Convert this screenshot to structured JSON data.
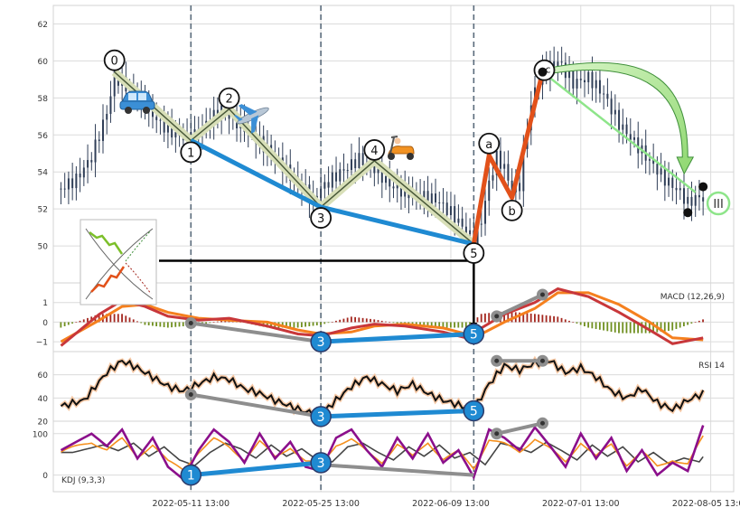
{
  "chart_data": {
    "type": "line",
    "title": "",
    "x_tick_labels": [
      "2022-05-11 13:00",
      "2022-05-25 13:00",
      "2022-06-09 13:00",
      "2022-07-01 13:00",
      "2022-08-05 13:00"
    ],
    "panels": [
      {
        "id": "price",
        "chart_type": "candlestick",
        "ylim": [
          48,
          63
        ],
        "yticks": [
          50,
          52,
          54,
          56,
          58,
          60,
          62
        ],
        "close_series": [
          {
            "x": 0,
            "y": 53.1
          },
          {
            "x": 2,
            "y": 53.6
          },
          {
            "x": 4,
            "y": 54.8
          },
          {
            "x": 6,
            "y": 57.2
          },
          {
            "x": 7,
            "y": 59.2
          },
          {
            "x": 9,
            "y": 58.4
          },
          {
            "x": 11,
            "y": 57.6
          },
          {
            "x": 13,
            "y": 56.6
          },
          {
            "x": 15,
            "y": 56.0
          },
          {
            "x": 17,
            "y": 55.8
          },
          {
            "x": 19,
            "y": 56.6
          },
          {
            "x": 21,
            "y": 57.4
          },
          {
            "x": 22,
            "y": 57.0
          },
          {
            "x": 24,
            "y": 56.4
          },
          {
            "x": 26,
            "y": 55.6
          },
          {
            "x": 28,
            "y": 54.8
          },
          {
            "x": 30,
            "y": 53.8
          },
          {
            "x": 32,
            "y": 53.0
          },
          {
            "x": 33,
            "y": 52.4
          },
          {
            "x": 34,
            "y": 53.1
          },
          {
            "x": 36,
            "y": 53.8
          },
          {
            "x": 38,
            "y": 54.4
          },
          {
            "x": 39,
            "y": 54.7
          },
          {
            "x": 41,
            "y": 54.2
          },
          {
            "x": 43,
            "y": 53.3
          },
          {
            "x": 45,
            "y": 52.9
          },
          {
            "x": 47,
            "y": 52.7
          },
          {
            "x": 49,
            "y": 52.5
          },
          {
            "x": 51,
            "y": 51.8
          },
          {
            "x": 53,
            "y": 50.8
          },
          {
            "x": 54,
            "y": 50.3
          },
          {
            "x": 55,
            "y": 51.4
          },
          {
            "x": 56,
            "y": 53.4
          },
          {
            "x": 57,
            "y": 54.8
          },
          {
            "x": 58,
            "y": 54.2
          },
          {
            "x": 59,
            "y": 53.0
          },
          {
            "x": 60,
            "y": 53.3
          },
          {
            "x": 61,
            "y": 56.5
          },
          {
            "x": 62,
            "y": 58.5
          },
          {
            "x": 63,
            "y": 59.4
          },
          {
            "x": 65,
            "y": 60.0
          },
          {
            "x": 67,
            "y": 58.8
          },
          {
            "x": 69,
            "y": 59.1
          },
          {
            "x": 71,
            "y": 58.2
          },
          {
            "x": 73,
            "y": 56.6
          },
          {
            "x": 75,
            "y": 55.6
          },
          {
            "x": 77,
            "y": 54.6
          },
          {
            "x": 79,
            "y": 53.6
          },
          {
            "x": 81,
            "y": 52.9
          },
          {
            "x": 82,
            "y": 52.3
          },
          {
            "x": 83,
            "y": 52.6
          }
        ],
        "wave_labels": [
          "0",
          "1",
          "2",
          "3",
          "4",
          "5",
          "a",
          "b",
          "c",
          "III"
        ],
        "wave_points": [
          {
            "label": "0",
            "x": 7,
            "y": 59.4
          },
          {
            "label": "1",
            "x": 17,
            "y": 55.7
          },
          {
            "label": "2",
            "x": 22,
            "y": 57.4
          },
          {
            "label": "3",
            "x": 34,
            "y": 52.1
          },
          {
            "label": "4",
            "x": 41,
            "y": 54.6
          },
          {
            "label": "5",
            "x": 54,
            "y": 50.1
          },
          {
            "label": "a",
            "x": 56,
            "y": 54.9
          },
          {
            "label": "b",
            "x": 59,
            "y": 52.6
          },
          {
            "label": "c",
            "x": 63,
            "y": 59.4
          }
        ],
        "icons": [
          "car-icon",
          "airplane-icon",
          "scooter-icon",
          "wave-diagram-icon"
        ]
      },
      {
        "id": "macd",
        "label": "MACD (12,26,9)",
        "ylim": [
          -1.5,
          2.0
        ],
        "yticks": [
          -1,
          0,
          1
        ],
        "macd": [
          {
            "x": 0,
            "y": -1.2
          },
          {
            "x": 5,
            "y": 0.4
          },
          {
            "x": 8,
            "y": 1.1
          },
          {
            "x": 11,
            "y": 0.8
          },
          {
            "x": 14,
            "y": 0.3
          },
          {
            "x": 18,
            "y": 0.1
          },
          {
            "x": 22,
            "y": 0.2
          },
          {
            "x": 27,
            "y": -0.2
          },
          {
            "x": 31,
            "y": -0.6
          },
          {
            "x": 34,
            "y": -0.7
          },
          {
            "x": 38,
            "y": -0.3
          },
          {
            "x": 41,
            "y": -0.1
          },
          {
            "x": 45,
            "y": -0.2
          },
          {
            "x": 50,
            "y": -0.5
          },
          {
            "x": 53,
            "y": -0.8
          },
          {
            "x": 55,
            "y": -0.3
          },
          {
            "x": 58,
            "y": 0.4
          },
          {
            "x": 62,
            "y": 1.0
          },
          {
            "x": 65,
            "y": 1.7
          },
          {
            "x": 69,
            "y": 1.3
          },
          {
            "x": 73,
            "y": 0.5
          },
          {
            "x": 77,
            "y": -0.4
          },
          {
            "x": 80,
            "y": -1.1
          },
          {
            "x": 84,
            "y": -0.8
          }
        ],
        "signal": [
          {
            "x": 0,
            "y": -1.0
          },
          {
            "x": 5,
            "y": 0.1
          },
          {
            "x": 8,
            "y": 0.8
          },
          {
            "x": 11,
            "y": 0.9
          },
          {
            "x": 14,
            "y": 0.5
          },
          {
            "x": 18,
            "y": 0.2
          },
          {
            "x": 22,
            "y": 0.1
          },
          {
            "x": 27,
            "y": 0.0
          },
          {
            "x": 31,
            "y": -0.4
          },
          {
            "x": 34,
            "y": -0.6
          },
          {
            "x": 38,
            "y": -0.5
          },
          {
            "x": 41,
            "y": -0.2
          },
          {
            "x": 45,
            "y": -0.1
          },
          {
            "x": 50,
            "y": -0.3
          },
          {
            "x": 53,
            "y": -0.6
          },
          {
            "x": 55,
            "y": -0.6
          },
          {
            "x": 58,
            "y": 0.0
          },
          {
            "x": 62,
            "y": 0.7
          },
          {
            "x": 65,
            "y": 1.5
          },
          {
            "x": 69,
            "y": 1.5
          },
          {
            "x": 73,
            "y": 0.9
          },
          {
            "x": 77,
            "y": 0.0
          },
          {
            "x": 80,
            "y": -0.8
          },
          {
            "x": 84,
            "y": -0.9
          }
        ],
        "divergence_labels": [
          "3",
          "5"
        ],
        "divergence_points": [
          {
            "label": "3",
            "x": 34,
            "y": -1.0
          },
          {
            "label": "5",
            "x": 54,
            "y": -0.6
          }
        ],
        "grey_points": [
          {
            "x": 17,
            "y": -0.05
          },
          {
            "x": 34,
            "y": -1.0
          },
          {
            "x": 57,
            "y": 0.3
          },
          {
            "x": 63,
            "y": 1.4
          }
        ]
      },
      {
        "id": "rsi",
        "label": "RSI 14",
        "ylim": [
          20,
          80
        ],
        "yticks": [
          20,
          40,
          60
        ],
        "values": [
          {
            "x": 0,
            "y": 33
          },
          {
            "x": 3,
            "y": 38
          },
          {
            "x": 6,
            "y": 62
          },
          {
            "x": 8,
            "y": 72
          },
          {
            "x": 10,
            "y": 66
          },
          {
            "x": 12,
            "y": 58
          },
          {
            "x": 14,
            "y": 50
          },
          {
            "x": 16,
            "y": 46
          },
          {
            "x": 18,
            "y": 52
          },
          {
            "x": 20,
            "y": 58
          },
          {
            "x": 22,
            "y": 56
          },
          {
            "x": 24,
            "y": 48
          },
          {
            "x": 26,
            "y": 44
          },
          {
            "x": 28,
            "y": 38
          },
          {
            "x": 30,
            "y": 33
          },
          {
            "x": 32,
            "y": 28
          },
          {
            "x": 34,
            "y": 26
          },
          {
            "x": 36,
            "y": 38
          },
          {
            "x": 38,
            "y": 50
          },
          {
            "x": 40,
            "y": 58
          },
          {
            "x": 42,
            "y": 52
          },
          {
            "x": 44,
            "y": 46
          },
          {
            "x": 46,
            "y": 52
          },
          {
            "x": 48,
            "y": 44
          },
          {
            "x": 50,
            "y": 38
          },
          {
            "x": 52,
            "y": 34
          },
          {
            "x": 54,
            "y": 30
          },
          {
            "x": 56,
            "y": 52
          },
          {
            "x": 58,
            "y": 68
          },
          {
            "x": 60,
            "y": 64
          },
          {
            "x": 62,
            "y": 70
          },
          {
            "x": 64,
            "y": 72
          },
          {
            "x": 66,
            "y": 62
          },
          {
            "x": 68,
            "y": 66
          },
          {
            "x": 70,
            "y": 58
          },
          {
            "x": 72,
            "y": 46
          },
          {
            "x": 74,
            "y": 40
          },
          {
            "x": 76,
            "y": 48
          },
          {
            "x": 78,
            "y": 36
          },
          {
            "x": 80,
            "y": 30
          },
          {
            "x": 82,
            "y": 38
          },
          {
            "x": 84,
            "y": 44
          }
        ],
        "divergence_labels": [
          "3",
          "5"
        ],
        "divergence_points": [
          {
            "label": "3",
            "x": 34,
            "y": 24
          },
          {
            "label": "5",
            "x": 54,
            "y": 29
          }
        ],
        "grey_points": [
          {
            "x": 17,
            "y": 43
          },
          {
            "x": 34,
            "y": 24
          },
          {
            "x": 57,
            "y": 72
          },
          {
            "x": 63,
            "y": 72
          }
        ]
      },
      {
        "id": "kdj",
        "label": "KDJ (9,3,3)",
        "ylim": [
          -40,
          130
        ],
        "yticks": [
          0,
          100
        ],
        "j": [
          {
            "x": 0,
            "y": 60
          },
          {
            "x": 2,
            "y": 80
          },
          {
            "x": 4,
            "y": 100
          },
          {
            "x": 6,
            "y": 70
          },
          {
            "x": 8,
            "y": 110
          },
          {
            "x": 10,
            "y": 40
          },
          {
            "x": 12,
            "y": 90
          },
          {
            "x": 14,
            "y": 20
          },
          {
            "x": 16,
            "y": -10
          },
          {
            "x": 18,
            "y": 60
          },
          {
            "x": 20,
            "y": 110
          },
          {
            "x": 22,
            "y": 80
          },
          {
            "x": 24,
            "y": 30
          },
          {
            "x": 26,
            "y": 100
          },
          {
            "x": 28,
            "y": 40
          },
          {
            "x": 30,
            "y": 80
          },
          {
            "x": 32,
            "y": 20
          },
          {
            "x": 34,
            "y": 10
          },
          {
            "x": 36,
            "y": 90
          },
          {
            "x": 38,
            "y": 110
          },
          {
            "x": 40,
            "y": 60
          },
          {
            "x": 42,
            "y": 20
          },
          {
            "x": 44,
            "y": 90
          },
          {
            "x": 46,
            "y": 40
          },
          {
            "x": 48,
            "y": 100
          },
          {
            "x": 50,
            "y": 30
          },
          {
            "x": 52,
            "y": 60
          },
          {
            "x": 54,
            "y": -5
          },
          {
            "x": 56,
            "y": 110
          },
          {
            "x": 58,
            "y": 90
          },
          {
            "x": 60,
            "y": 60
          },
          {
            "x": 62,
            "y": 115
          },
          {
            "x": 64,
            "y": 70
          },
          {
            "x": 66,
            "y": 20
          },
          {
            "x": 68,
            "y": 100
          },
          {
            "x": 70,
            "y": 40
          },
          {
            "x": 72,
            "y": 90
          },
          {
            "x": 74,
            "y": 10
          },
          {
            "x": 76,
            "y": 60
          },
          {
            "x": 78,
            "y": 0
          },
          {
            "x": 80,
            "y": 30
          },
          {
            "x": 82,
            "y": 10
          },
          {
            "x": 84,
            "y": 120
          }
        ],
        "divergence_labels": [
          "1",
          "3"
        ],
        "divergence_points": [
          {
            "label": "1",
            "x": 17,
            "y": 0
          },
          {
            "label": "3",
            "x": 34,
            "y": 30
          }
        ],
        "grey_points": [
          {
            "x": 57,
            "y": 100
          },
          {
            "x": 63,
            "y": 125
          }
        ]
      }
    ],
    "vertical_lines_x": [
      17,
      34,
      54
    ],
    "legend": "none",
    "grid": true
  }
}
